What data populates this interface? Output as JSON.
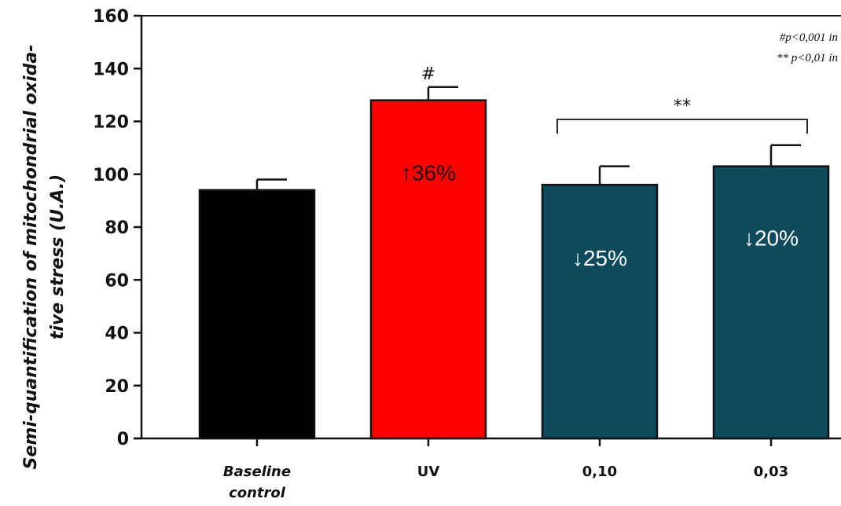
{
  "chart_data": {
    "type": "bar",
    "categories": [
      "Baseline control",
      "UV",
      "0,10",
      "0,03"
    ],
    "category_lines": [
      [
        "Baseline",
        "control"
      ],
      [
        "UV"
      ],
      [
        "0,10"
      ],
      [
        "0,03"
      ]
    ],
    "values": [
      94,
      128,
      96,
      103
    ],
    "errors": [
      4,
      5,
      7,
      8
    ],
    "colors": [
      "#000000",
      "#ff0000",
      "#0c4a5c",
      "#0c4a5c"
    ],
    "bar_labels": [
      "",
      "↑36%",
      "↓25%",
      "↓20%"
    ],
    "bar_label_colors": [
      "#ffffff",
      "#111111",
      "#ffffff",
      "#ffffff"
    ],
    "ylabel_lines": [
      "Semi-quantification of mitochondrial oxida-",
      "tive stress (U.A.)"
    ],
    "xlabel": "",
    "ylim": [
      0,
      160
    ],
    "yticks": [
      0,
      20,
      40,
      60,
      80,
      100,
      120,
      140,
      160
    ],
    "annotations": {
      "uv_marker": "#",
      "bracket_label": "**",
      "legend_lines": [
        "#p<0,001 in",
        "** p<0,01 in"
      ]
    }
  }
}
